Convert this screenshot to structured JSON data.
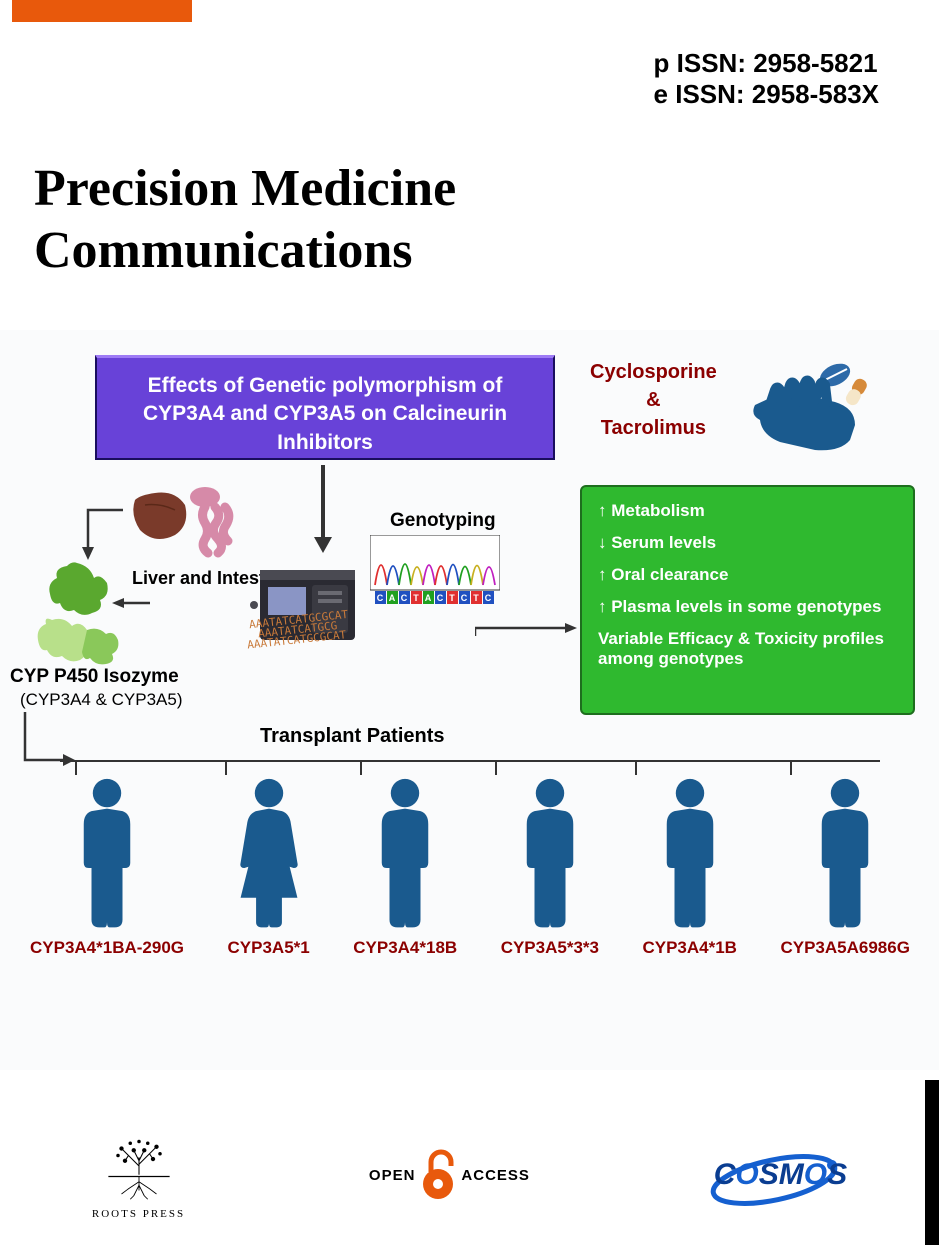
{
  "header": {
    "p_issn": "p ISSN: 2958-5821",
    "e_issn": "e ISSN: 2958-583X",
    "title_line1": "Precision Medicine",
    "title_line2": "Communications"
  },
  "diagram": {
    "purple_box": "Effects of Genetic polymorphism of CYP3A4 and CYP3A5 on Calcineurin Inhibitors",
    "cyclo_line1": "Cyclosporine",
    "cyclo_line2": "&",
    "cyclo_line3": "Tacrolimus",
    "liver_label": "Liver and Intestine",
    "cyp_label": "CYP P450 Isozyme",
    "cyp_sublabel": "(CYP3A4 & CYP3A5)",
    "genotyping": "Genotyping",
    "transplant": "Transplant Patients",
    "green_items": [
      "↑  Metabolism",
      "↓ Serum  levels",
      "↑  Oral clearance",
      "↑  Plasma levels in some genotypes",
      "Variable Efficacy & Toxicity profiles among genotypes"
    ],
    "chromatogram_seq": "CACTACTCTC",
    "dna_lines": [
      "AAATATCATGCGCAT",
      "AAATATCATGCG",
      "AAATATCATGCGCAT"
    ],
    "patients": [
      {
        "genotype": "CYP3A4*1BA-290G",
        "gender": "m"
      },
      {
        "genotype": "CYP3A5*1",
        "gender": "f"
      },
      {
        "genotype": "CYP3A4*18B",
        "gender": "m"
      },
      {
        "genotype": "CYP3A5*3*3",
        "gender": "m"
      },
      {
        "genotype": "CYP3A4*1B",
        "gender": "m"
      },
      {
        "genotype": "CYP3A5A6986G",
        "gender": "m"
      }
    ],
    "colors": {
      "purple": "#6842d8",
      "green": "#2fb92f",
      "person": "#1a5a8e",
      "maroon": "#8b0000",
      "orange": "#e8590c"
    }
  },
  "footer": {
    "roots": "ROOTS PRESS",
    "open": "OPEN",
    "access": "ACCESS",
    "cosmos": "COSMOS"
  }
}
